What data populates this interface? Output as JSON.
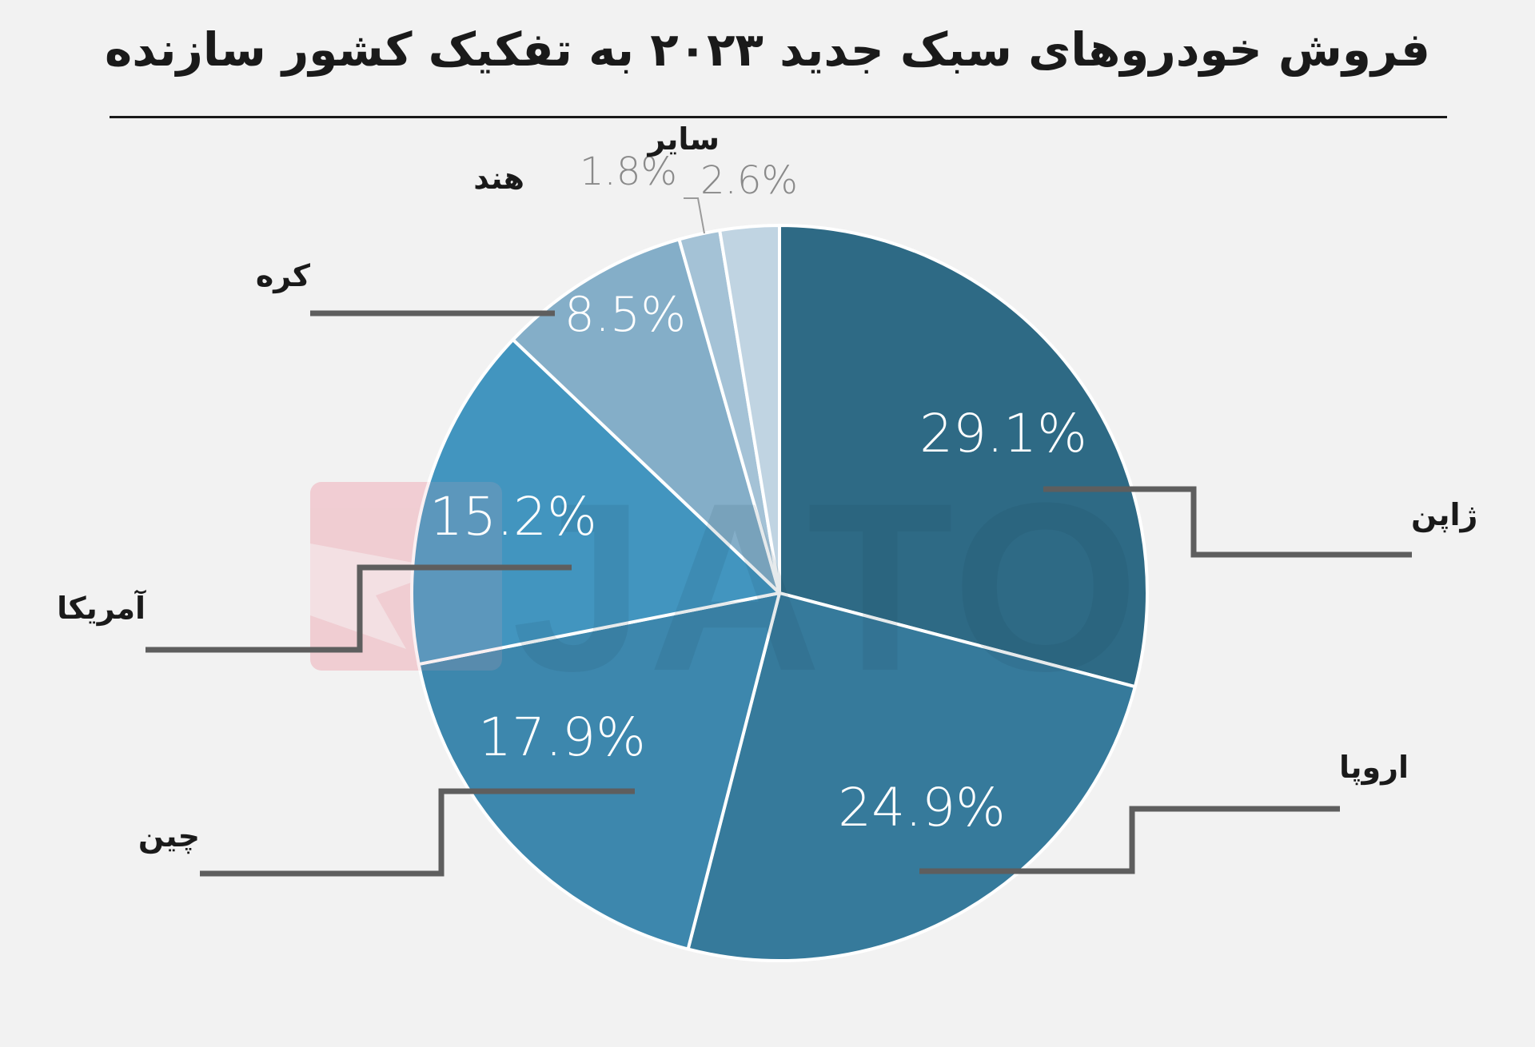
{
  "chart_data": {
    "type": "pie",
    "title": "فروش خودروهای سبک جدید ۲۰۲۳ به تفکیک کشور سازنده",
    "start_angle_deg": 0,
    "direction": "clockwise",
    "slices": [
      {
        "label": "ژاپن",
        "value": 29.1,
        "value_label": "29.1%",
        "color": "#2e6a85"
      },
      {
        "label": "اروپا",
        "value": 24.9,
        "value_label": "24.9%",
        "color": "#367a9b"
      },
      {
        "label": "چین",
        "value": 17.9,
        "value_label": "17.9%",
        "color": "#3d87ad"
      },
      {
        "label": "آمریکا",
        "value": 15.2,
        "value_label": "15.2%",
        "color": "#4295bf"
      },
      {
        "label": "کره",
        "value": 8.5,
        "value_label": "8.5%",
        "color": "#84aec8"
      },
      {
        "label": "هند",
        "value": 1.8,
        "value_label": "1.8%",
        "color": "#a4c2d6"
      },
      {
        "label": "سایر",
        "value": 2.6,
        "value_label": "2.6%",
        "color": "#c0d4e2"
      }
    ],
    "watermark": "JATO"
  }
}
